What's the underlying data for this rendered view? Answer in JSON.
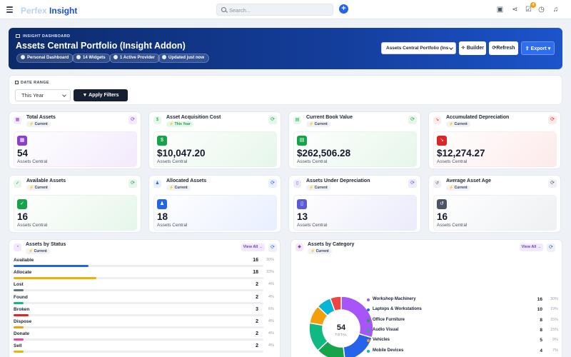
{
  "topbar": {
    "logo_faint": "Perfex",
    "logo_strong": "Insight",
    "search_placeholder": "Search...",
    "notification_count": "4"
  },
  "hero": {
    "kicker": "INSIGHT DASHBOARD",
    "title": "Assets Central Portfolio (Insight Addon)",
    "pills": [
      "Personal Dashboard",
      "14 Widgets",
      "1 Active Provider",
      "Updated just now"
    ],
    "dashboard_select": "Assets Central Portfolio (Ins",
    "builder_label": "Builder",
    "refresh_label": "Refresh",
    "export_label": "Export"
  },
  "filters": {
    "label": "DATE RANGE",
    "range_value": "This Year",
    "apply_label": "Apply Filters"
  },
  "kpis": [
    {
      "title": "Total Assets",
      "sub": "Current",
      "value": "54",
      "foot": "Assets Central",
      "accent": "#8b3ec9",
      "soft": "#f3eafc",
      "icon": "boxes-icon",
      "glyph": "▦",
      "refresh_color": "#8b3ec9"
    },
    {
      "title": "Asset Acquisition Cost",
      "sub": "This Year",
      "value": "$10,047.20",
      "foot": "Assets Central",
      "accent": "#16a34a",
      "soft": "#e6f6ea",
      "icon": "money-bag-icon",
      "glyph": "$",
      "refresh_color": "#16a34a"
    },
    {
      "title": "Current Book Value",
      "sub": "Current",
      "value": "$262,506.28",
      "foot": "Assets Central",
      "accent": "#16a34a",
      "soft": "#e6f6ea",
      "icon": "cash-icon",
      "glyph": "▤",
      "refresh_color": "#16a34a"
    },
    {
      "title": "Accumulated Depreciation",
      "sub": "Current",
      "value": "$12,274.27",
      "foot": "Assets Central",
      "accent": "#dc2626",
      "soft": "#fdeaea",
      "icon": "trend-down-icon",
      "glyph": "↘",
      "refresh_color": "#dc2626"
    },
    {
      "title": "Available Assets",
      "sub": "Current",
      "value": "16",
      "foot": "Assets Central",
      "accent": "#16a34a",
      "soft": "#e6f6ea",
      "icon": "check-circle-icon",
      "glyph": "✓",
      "refresh_color": "#16a34a"
    },
    {
      "title": "Allocated Assets",
      "sub": "Current",
      "value": "18",
      "foot": "Assets Central",
      "accent": "#2563eb",
      "soft": "#e8efff",
      "icon": "people-icon",
      "glyph": "♟",
      "refresh_color": "#2563eb"
    },
    {
      "title": "Assets Under Depreciation",
      "sub": "Current",
      "value": "13",
      "foot": "Assets Central",
      "accent": "#5b5bd6",
      "soft": "#ebebfb",
      "icon": "document-icon",
      "glyph": "▯",
      "refresh_color": "#5b5bd6"
    },
    {
      "title": "Average Asset Age",
      "sub": "Current",
      "value": "16",
      "foot": "Assets Central",
      "accent": "#4b5565",
      "soft": "#eef0f3",
      "icon": "history-icon",
      "glyph": "↺",
      "refresh_color": "#4b5565"
    }
  ],
  "status_panel": {
    "title": "Assets by Status",
    "sub": "Current",
    "view_all": "View All",
    "rows": [
      {
        "name": "Available",
        "count": "16",
        "pct": "30%",
        "fraction": 0.3,
        "color": "#2563eb"
      },
      {
        "name": "Allocate",
        "count": "18",
        "pct": "33%",
        "fraction": 0.33,
        "color": "#eab308"
      },
      {
        "name": "Lost",
        "count": "2",
        "pct": "4%",
        "fraction": 0.04,
        "color": "#64748b"
      },
      {
        "name": "Found",
        "count": "2",
        "pct": "4%",
        "fraction": 0.04,
        "color": "#10b981"
      },
      {
        "name": "Broken",
        "count": "3",
        "pct": "6%",
        "fraction": 0.06,
        "color": "#dc2626"
      },
      {
        "name": "Dispose",
        "count": "2",
        "pct": "4%",
        "fraction": 0.04,
        "color": "#f59e0b"
      },
      {
        "name": "Donate",
        "count": "2",
        "pct": "4%",
        "fraction": 0.04,
        "color": "#ec4899"
      },
      {
        "name": "Sell",
        "count": "2",
        "pct": "4%",
        "fraction": 0.04,
        "color": "#eab308"
      }
    ]
  },
  "category_panel": {
    "title": "Assets by Category",
    "sub": "Current",
    "view_all": "View All",
    "total": "54",
    "total_label": "TOTAL",
    "rows": [
      {
        "name": "Workshop Machinery",
        "count": "16",
        "pct": "30%",
        "value": 16,
        "color": "#a855f7"
      },
      {
        "name": "Laptops & Workstations",
        "count": "10",
        "pct": "19%",
        "value": 10,
        "color": "#2563eb"
      },
      {
        "name": "Office Furniture",
        "count": "8",
        "pct": "15%",
        "value": 8,
        "color": "#16a34a"
      },
      {
        "name": "Audio Visual",
        "count": "8",
        "pct": "15%",
        "value": 8,
        "color": "#10b981"
      },
      {
        "name": "Vehicles",
        "count": "5",
        "pct": "9%",
        "value": 5,
        "color": "#f59e0b"
      },
      {
        "name": "Mobile Devices",
        "count": "4",
        "pct": "7%",
        "value": 4,
        "color": "#06b6d4"
      },
      {
        "name": "",
        "count": "",
        "pct": "",
        "value": 3,
        "color": "#ef4444"
      }
    ]
  }
}
